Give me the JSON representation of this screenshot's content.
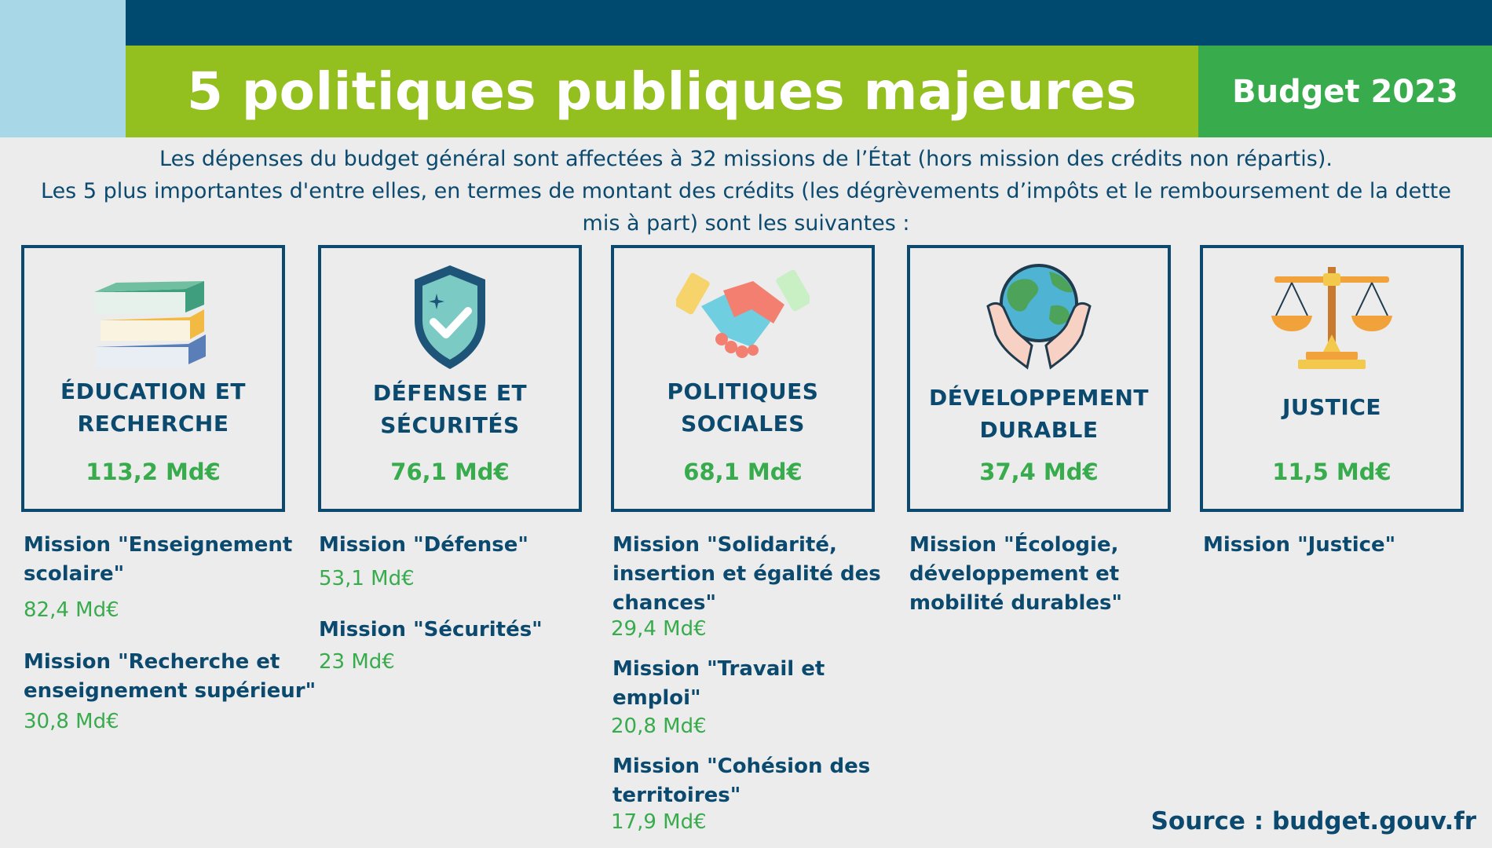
{
  "header": {
    "title": "5 politiques publiques majeures",
    "year_label": "Budget 2023"
  },
  "intro": {
    "line1": "Les dépenses du budget général sont affectées à 32 missions de l’État (hors mission des crédits non répartis).",
    "line2": "Les 5 plus importantes d'entre elles, en termes de montant des crédits (les dégrèvements d’impôts et le remboursement de la dette mis à part) sont les suivantes :"
  },
  "policies": [
    {
      "name_line1": "ÉDUCATION ET",
      "name_line2": "RECHERCHE",
      "amount": "113,2 Md€",
      "icon": "books-icon",
      "missions": [
        {
          "label_line1": "Mission \"Enseignement",
          "label_line2": "scolaire\"",
          "amount": "82,4 Md€"
        },
        {
          "label_line1": "Mission \"Recherche et",
          "label_line2": "enseignement supérieur\"",
          "amount": "30,8 Md€"
        }
      ]
    },
    {
      "name_line1": "DÉFENSE ET",
      "name_line2": "SÉCURITÉS",
      "amount": "76,1 Md€",
      "icon": "shield-icon",
      "missions": [
        {
          "label_line1": "Mission \"Défense\"",
          "amount": "53,1 Md€"
        },
        {
          "label_line1": "Mission \"Sécurités\"",
          "amount": "23 Md€"
        }
      ]
    },
    {
      "name_line1": "POLITIQUES",
      "name_line2": "SOCIALES",
      "amount": "68,1 Md€",
      "icon": "handshake-icon",
      "missions": [
        {
          "label_line1": "Mission \"Solidarité,",
          "label_line2": "insertion et égalité des",
          "label_line3": "chances\"",
          "amount": "29,4  Md€"
        },
        {
          "label_line1": "Mission \"Travail et",
          "label_line2": "emploi\"",
          "amount": "20,8  Md€"
        },
        {
          "label_line1": "Mission \"Cohésion des",
          "label_line2": "territoires\"",
          "amount": "17,9 Md€"
        }
      ]
    },
    {
      "name_line1": "DÉVELOPPEMENT",
      "name_line2": "DURABLE",
      "amount": "37,4 Md€",
      "icon": "globe-hands-icon",
      "missions": [
        {
          "label_line1": "Mission \"Écologie,",
          "label_line2": "développement et",
          "label_line3": "mobilité durables\""
        }
      ]
    },
    {
      "name_line1": "JUSTICE",
      "amount": "11,5 Md€",
      "icon": "scales-icon",
      "missions": [
        {
          "label_line1": "Mission \"Justice\""
        }
      ]
    }
  ],
  "footer": {
    "source": "Source : budget.gouv.fr"
  }
}
